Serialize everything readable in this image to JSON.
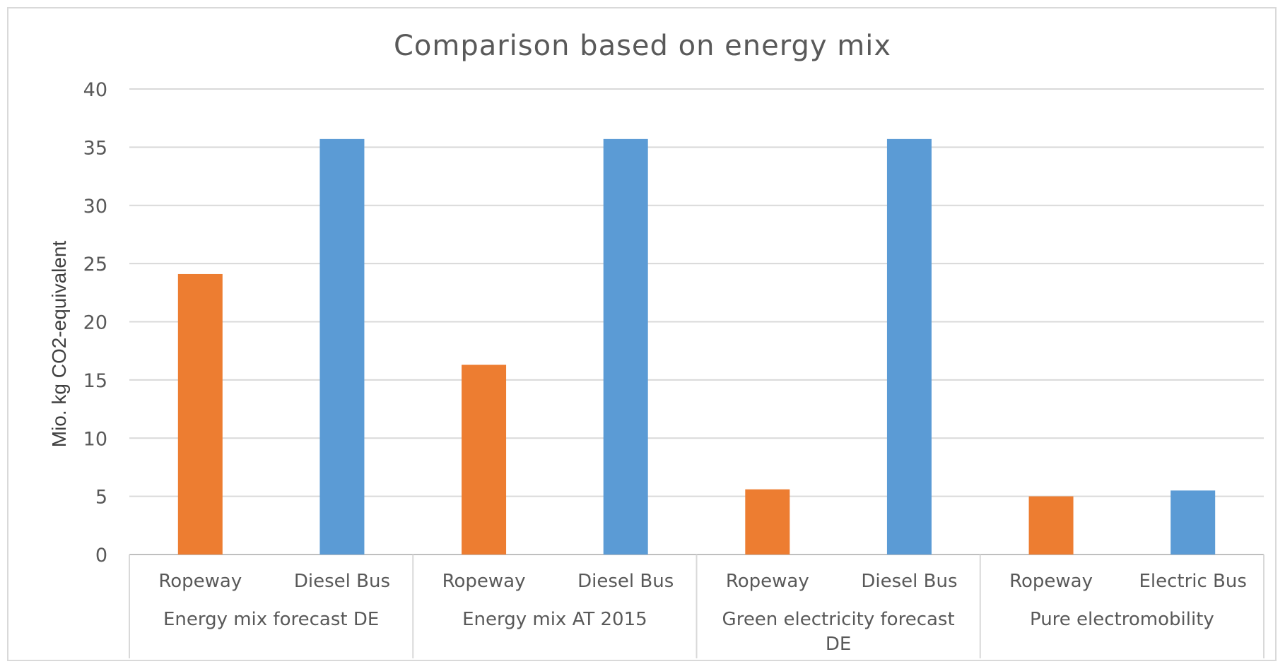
{
  "chart_data": {
    "type": "bar",
    "title": "Comparison based on energy mix",
    "ylabel": "Mio. kg CO2-equivalent",
    "xlabel": "",
    "ylim": [
      0,
      40
    ],
    "yticks": [
      0,
      5,
      10,
      15,
      20,
      25,
      30,
      35,
      40
    ],
    "grid": true,
    "legend": "none",
    "groups": [
      {
        "label_lines": [
          "Energy mix forecast DE"
        ],
        "bars": [
          {
            "category": "Ropeway",
            "value": 24.1,
            "color": "#ed7d31"
          },
          {
            "category": "Diesel Bus",
            "value": 35.7,
            "color": "#5b9bd5"
          }
        ]
      },
      {
        "label_lines": [
          "Energy mix AT 2015"
        ],
        "bars": [
          {
            "category": "Ropeway",
            "value": 16.3,
            "color": "#ed7d31"
          },
          {
            "category": "Diesel Bus",
            "value": 35.7,
            "color": "#5b9bd5"
          }
        ]
      },
      {
        "label_lines": [
          "Green electricity forecast",
          "DE"
        ],
        "bars": [
          {
            "category": "Ropeway",
            "value": 5.6,
            "color": "#ed7d31"
          },
          {
            "category": "Diesel Bus",
            "value": 35.7,
            "color": "#5b9bd5"
          }
        ]
      },
      {
        "label_lines": [
          "Pure electromobility"
        ],
        "bars": [
          {
            "category": "Ropeway",
            "value": 5.0,
            "color": "#ed7d31"
          },
          {
            "category": "Electric Bus",
            "value": 5.5,
            "color": "#5b9bd5"
          }
        ]
      }
    ]
  }
}
